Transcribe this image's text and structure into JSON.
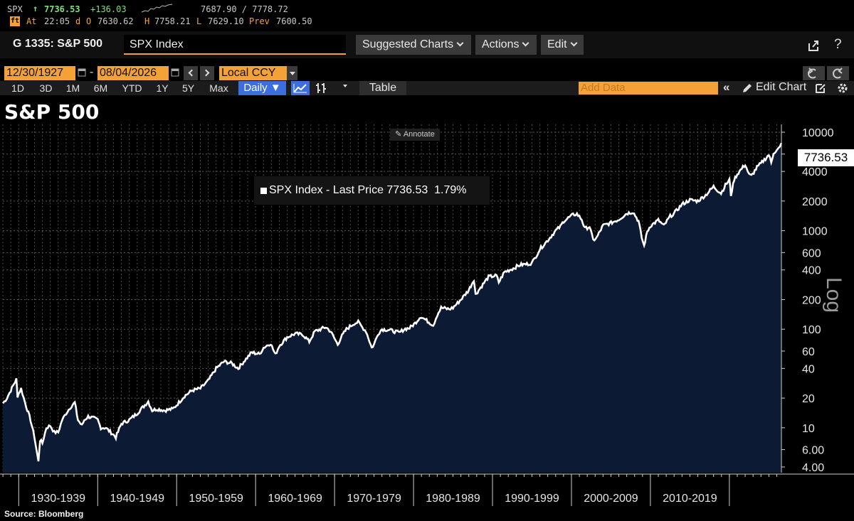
{
  "ticker": {
    "symbol": "SPX",
    "arrow": "↑",
    "last": "7736.53",
    "change": "+136.03",
    "range": "7687.90 / 7778.72",
    "badge": "ft",
    "at_label": "At",
    "time": "22:05",
    "d_label": "d",
    "o_label": "O",
    "open": "7630.62",
    "h_label": "H",
    "high": "7758.21",
    "l_label": "L",
    "low": "7629.10",
    "prev_label": "Prev",
    "prev": "7600.50"
  },
  "header": {
    "page_label": "G 1335: S&P 500",
    "security": "SPX Index",
    "suggested_charts": "Suggested Charts",
    "actions": "Actions",
    "edit": "Edit",
    "help": "?"
  },
  "controls": {
    "start_date": "12/30/1927",
    "end_date": "08/04/2026",
    "date_sep": "-",
    "currency": "Local CCY",
    "periods": [
      "1D",
      "3D",
      "1M",
      "6M",
      "YTD",
      "1Y",
      "5Y",
      "Max"
    ],
    "frequency": "Daily ▼",
    "table": "Table",
    "add_data_placeholder": "Add Data",
    "edit_chart": "Edit Chart"
  },
  "chart_title": "S&P 500",
  "source": "Source: Bloomberg",
  "colors": {
    "accent_orange": "#f4a137",
    "area_fill": "#0d1a33",
    "line": "#ffffff",
    "freq_active": "#3d6ee0"
  },
  "chart_data": {
    "type": "area",
    "title": "S&P 500",
    "y_scale": "log",
    "ylabel": "Log",
    "ylim": [
      3.5,
      12000
    ],
    "y_ticks": [
      4,
      6,
      10,
      20,
      40,
      60,
      100,
      200,
      400,
      600,
      1000,
      2000,
      4000,
      6000,
      10000
    ],
    "y_tick_labels": [
      "4.00",
      "6.00",
      "10",
      "20",
      "40",
      "60",
      "100",
      "200",
      "400",
      "600",
      "1000",
      "2000",
      "4000",
      "6000",
      "10000"
    ],
    "x_range": [
      1927.99,
      2026.59
    ],
    "x_category_labels": [
      "1930-1939",
      "1940-1949",
      "1950-1959",
      "1960-1969",
      "1970-1979",
      "1980-1989",
      "1990-1999",
      "2000-2009",
      "2010-2019"
    ],
    "grid": true,
    "legend": "SPX Index - Last Price 7736.53  1.79%",
    "legend_position": "top-left",
    "annotate_label": "Annotate",
    "last_value_label": "7736.53",
    "series": [
      {
        "name": "SPX Index - Last Price",
        "x": [
          1928.0,
          1928.5,
          1929.0,
          1929.4,
          1929.7,
          1929.85,
          1930.3,
          1930.8,
          1931.5,
          1932.0,
          1932.5,
          1932.7,
          1933.0,
          1933.5,
          1934.0,
          1934.5,
          1935.0,
          1935.5,
          1936.0,
          1936.5,
          1937.1,
          1937.5,
          1938.0,
          1938.3,
          1938.8,
          1939.5,
          1940.0,
          1940.4,
          1941.0,
          1942.0,
          1942.3,
          1943.0,
          1944.0,
          1945.0,
          1946.4,
          1946.9,
          1947.5,
          1948.5,
          1949.5,
          1950.0,
          1951.0,
          1952.0,
          1953.0,
          1954.0,
          1955.0,
          1956.0,
          1957.0,
          1957.8,
          1958.5,
          1959.5,
          1960.5,
          1961.0,
          1961.9,
          1962.5,
          1963.0,
          1964.0,
          1965.0,
          1966.0,
          1966.8,
          1967.5,
          1968.9,
          1969.5,
          1970.4,
          1970.8,
          1971.5,
          1972.5,
          1973.0,
          1973.5,
          1974.0,
          1974.7,
          1975.0,
          1975.5,
          1976.0,
          1977.0,
          1978.2,
          1978.8,
          1979.5,
          1980.2,
          1980.9,
          1981.5,
          1982.5,
          1983.0,
          1983.5,
          1984.5,
          1985.0,
          1986.0,
          1987.0,
          1987.65,
          1987.85,
          1988.5,
          1989.5,
          1990.5,
          1990.8,
          1991.5,
          1992.5,
          1993.5,
          1994.5,
          1995.0,
          1995.5,
          1996.0,
          1997.0,
          1998.0,
          1998.6,
          1999.0,
          2000.2,
          2000.7,
          2001.3,
          2001.7,
          2002.3,
          2002.75,
          2003.2,
          2004.0,
          2005.0,
          2006.0,
          2007.0,
          2007.8,
          2008.5,
          2008.9,
          2009.2,
          2009.6,
          2010.0,
          2011.0,
          2011.7,
          2012.5,
          2013.0,
          2014.0,
          2015.0,
          2016.0,
          2017.0,
          2018.0,
          2018.95,
          2019.5,
          2020.0,
          2020.2,
          2020.6,
          2021.0,
          2022.0,
          2022.5,
          2022.8,
          2023.5,
          2024.0,
          2025.0,
          2025.3,
          2025.6,
          2026.0,
          2026.4,
          2026.59
        ],
        "values": [
          17.7,
          20,
          24,
          28,
          31,
          21,
          25,
          18,
          12,
          8,
          4.5,
          7.5,
          7,
          10,
          10.5,
          9,
          9,
          12,
          14,
          16,
          18,
          12,
          10.5,
          12,
          13,
          12.5,
          12,
          10,
          10,
          8.5,
          8,
          11,
          12,
          14,
          18.5,
          15,
          15.5,
          15,
          15.5,
          17,
          21,
          24,
          25,
          30,
          40,
          47,
          45,
          40,
          47,
          58,
          56,
          65,
          72,
          55,
          68,
          83,
          90,
          88,
          75,
          95,
          105,
          95,
          70,
          82,
          100,
          115,
          118,
          105,
          95,
          65,
          70,
          90,
          100,
          98,
          92,
          100,
          103,
          115,
          135,
          125,
          110,
          140,
          165,
          160,
          165,
          200,
          250,
          320,
          225,
          265,
          340,
          350,
          300,
          380,
          410,
          450,
          460,
          470,
          550,
          650,
          800,
          1000,
          1100,
          1250,
          1450,
          1480,
          1300,
          1050,
          1100,
          800,
          850,
          1130,
          1200,
          1300,
          1500,
          1550,
          1250,
          850,
          700,
          980,
          1120,
          1280,
          1120,
          1400,
          1500,
          1850,
          2050,
          2000,
          2300,
          2800,
          2400,
          2900,
          3300,
          2300,
          3300,
          3750,
          4700,
          3700,
          3600,
          4400,
          4800,
          5900,
          4900,
          6200,
          6500,
          7000,
          7736.53
        ]
      }
    ]
  }
}
